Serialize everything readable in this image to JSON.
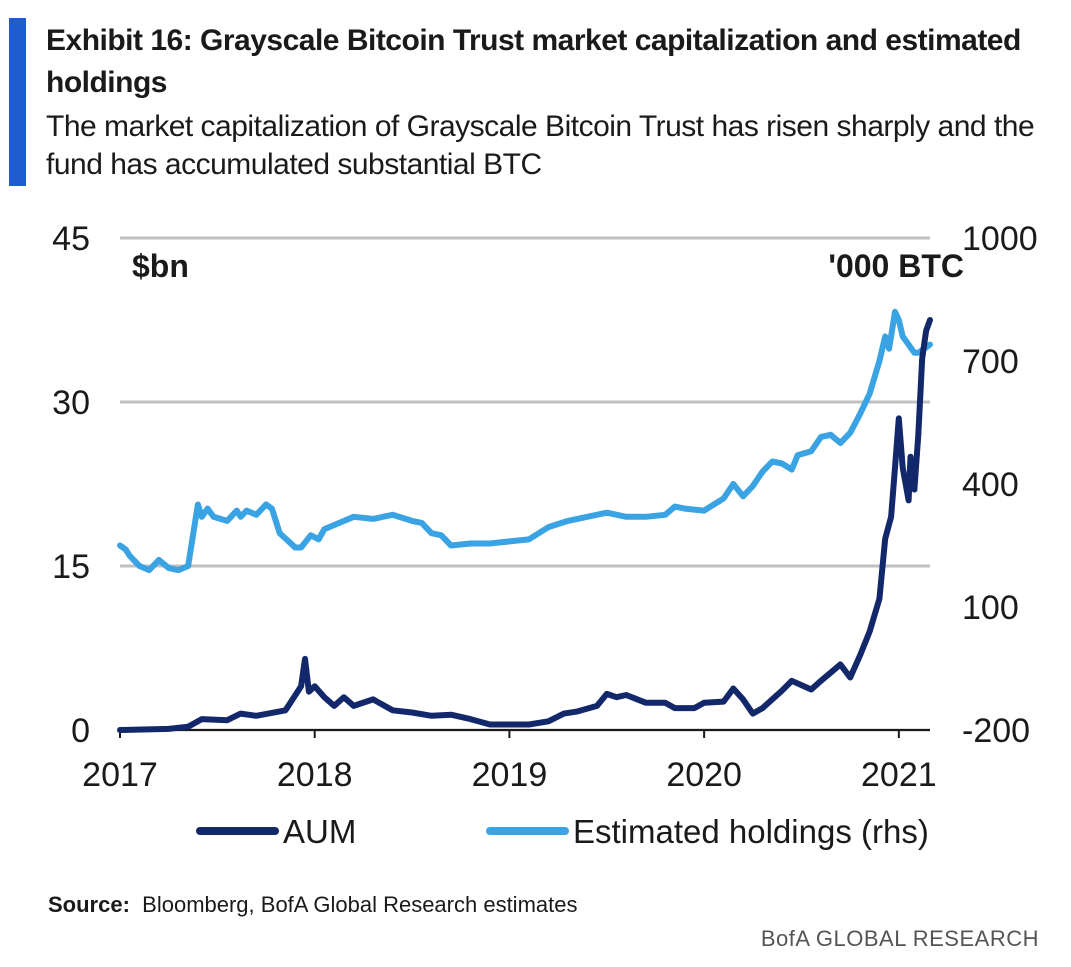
{
  "header": {
    "title": "Exhibit 16: Grayscale Bitcoin Trust market capitalization and estimated holdings",
    "subtitle": "The market capitalization of Grayscale Bitcoin Trust has risen sharply and the fund has accumulated substantial BTC"
  },
  "footer": {
    "source_label": "Source:",
    "source_text": "Bloomberg, BofA Global Research estimates",
    "brand": "BofA GLOBAL RESEARCH"
  },
  "colors": {
    "aum": "#13286b",
    "holdings": "#3aa3e3",
    "grid": "#c0c0c0",
    "accent": "#1f5bd1"
  },
  "chart_data": {
    "type": "line",
    "title": "Grayscale Bitcoin Trust market capitalization and estimated holdings",
    "left_axis": {
      "unit_label": "$bn",
      "ticks": [
        "45",
        "30",
        "15",
        "0"
      ],
      "ylim": [
        0,
        45
      ]
    },
    "right_axis": {
      "unit_label": "'000 BTC",
      "ticks": [
        "1000",
        "700",
        "400",
        "100",
        "-200"
      ],
      "ylim": [
        -200,
        1000
      ]
    },
    "x_axis": {
      "ticks": [
        "2017",
        "2018",
        "2019",
        "2020",
        "2021"
      ],
      "xlim": [
        2017.0,
        2021.16
      ]
    },
    "grid": true,
    "legend": {
      "placement": "bottom",
      "entries": [
        "AUM",
        "Estimated holdings (rhs)"
      ]
    },
    "series": [
      {
        "name": "AUM",
        "axis": "left",
        "x": [
          2017.0,
          2017.25,
          2017.35,
          2017.42,
          2017.55,
          2017.62,
          2017.7,
          2017.85,
          2017.93,
          2017.95,
          2017.97,
          2018.0,
          2018.05,
          2018.1,
          2018.15,
          2018.2,
          2018.3,
          2018.4,
          2018.5,
          2018.6,
          2018.7,
          2018.8,
          2018.9,
          2019.0,
          2019.1,
          2019.2,
          2019.28,
          2019.35,
          2019.45,
          2019.5,
          2019.55,
          2019.6,
          2019.7,
          2019.8,
          2019.85,
          2019.95,
          2020.0,
          2020.1,
          2020.15,
          2020.2,
          2020.25,
          2020.3,
          2020.4,
          2020.45,
          2020.55,
          2020.6,
          2020.7,
          2020.75,
          2020.8,
          2020.85,
          2020.9,
          2020.93,
          2020.96,
          2020.98,
          2021.0,
          2021.02,
          2021.05,
          2021.06,
          2021.08,
          2021.1,
          2021.12,
          2021.14,
          2021.16
        ],
        "values": [
          0.0,
          0.1,
          0.3,
          1.0,
          0.9,
          1.5,
          1.3,
          1.8,
          4.0,
          6.5,
          3.5,
          4.0,
          3.0,
          2.2,
          3.0,
          2.2,
          2.8,
          1.8,
          1.6,
          1.3,
          1.4,
          1.0,
          0.5,
          0.5,
          0.5,
          0.8,
          1.5,
          1.7,
          2.2,
          3.3,
          3.0,
          3.2,
          2.5,
          2.5,
          2.0,
          2.0,
          2.5,
          2.6,
          3.8,
          2.8,
          1.5,
          2.0,
          3.6,
          4.5,
          3.7,
          4.5,
          6.0,
          4.8,
          6.8,
          9.0,
          12.0,
          17.5,
          19.5,
          24.0,
          28.5,
          24.0,
          21.0,
          25.0,
          22.0,
          27.0,
          34.0,
          36.5,
          37.5
        ]
      },
      {
        "name": "Estimated holdings (rhs)",
        "axis": "right",
        "x": [
          2017.0,
          2017.03,
          2017.05,
          2017.1,
          2017.15,
          2017.2,
          2017.25,
          2017.3,
          2017.35,
          2017.4,
          2017.42,
          2017.45,
          2017.48,
          2017.55,
          2017.6,
          2017.62,
          2017.65,
          2017.7,
          2017.75,
          2017.78,
          2017.82,
          2017.9,
          2017.93,
          2017.98,
          2018.02,
          2018.05,
          2018.1,
          2018.2,
          2018.3,
          2018.4,
          2018.5,
          2018.55,
          2018.6,
          2018.65,
          2018.7,
          2018.8,
          2018.9,
          2019.0,
          2019.1,
          2019.2,
          2019.3,
          2019.4,
          2019.5,
          2019.6,
          2019.7,
          2019.8,
          2019.85,
          2019.9,
          2020.0,
          2020.1,
          2020.15,
          2020.2,
          2020.25,
          2020.3,
          2020.35,
          2020.4,
          2020.45,
          2020.48,
          2020.55,
          2020.6,
          2020.65,
          2020.7,
          2020.75,
          2020.8,
          2020.85,
          2020.9,
          2020.93,
          2020.95,
          2020.98,
          2021.0,
          2021.02,
          2021.05,
          2021.08,
          2021.1,
          2021.13,
          2021.16
        ],
        "values": [
          250,
          240,
          225,
          200,
          190,
          215,
          195,
          190,
          200,
          350,
          320,
          340,
          320,
          310,
          335,
          320,
          335,
          325,
          350,
          340,
          280,
          245,
          245,
          275,
          265,
          290,
          300,
          320,
          315,
          325,
          310,
          305,
          280,
          275,
          250,
          255,
          255,
          260,
          265,
          295,
          310,
          320,
          330,
          320,
          320,
          325,
          345,
          340,
          335,
          365,
          400,
          370,
          395,
          430,
          455,
          450,
          435,
          470,
          480,
          515,
          520,
          500,
          525,
          570,
          620,
          700,
          760,
          730,
          820,
          800,
          760,
          740,
          720,
          720,
          730,
          740
        ]
      }
    ]
  }
}
